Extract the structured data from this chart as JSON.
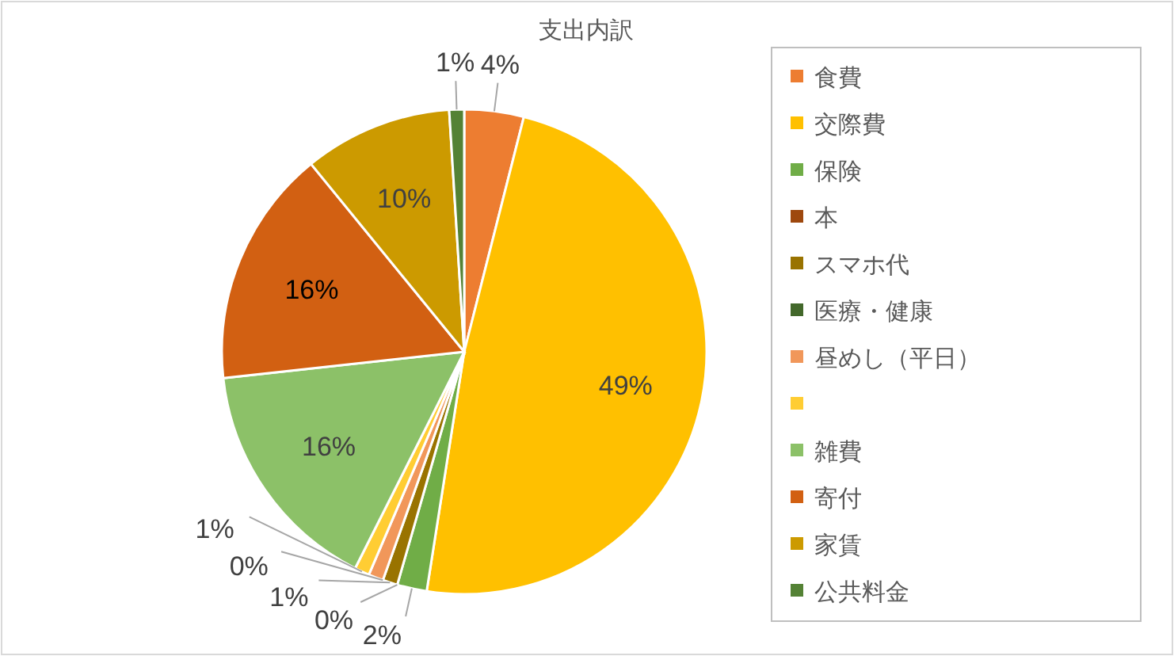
{
  "chart_data": {
    "type": "pie",
    "title": "支出内訳",
    "categories": [
      "食費",
      "交際費",
      "保険",
      "本",
      "スマホ代",
      "医療・健康",
      "昼めし（平日）",
      null,
      "雑費",
      "寄付",
      "家賃",
      "公共料金"
    ],
    "values": [
      4,
      49,
      2,
      0,
      1,
      0,
      1,
      1,
      16,
      16,
      10,
      1
    ],
    "colors": [
      "#ed7d31",
      "#ffc000",
      "#70ad47",
      "#9e480e",
      "#997300",
      "#43682b",
      "#f1975a",
      "#ffcd33",
      "#8cc168",
      "#d26012",
      "#cc9a00",
      "#548235"
    ],
    "value_labels": [
      "4%",
      "49%",
      "2%",
      "0%",
      "1%",
      "0%",
      null,
      "1%",
      "16%",
      "16%",
      "10%",
      "1%"
    ],
    "legend": "right"
  }
}
